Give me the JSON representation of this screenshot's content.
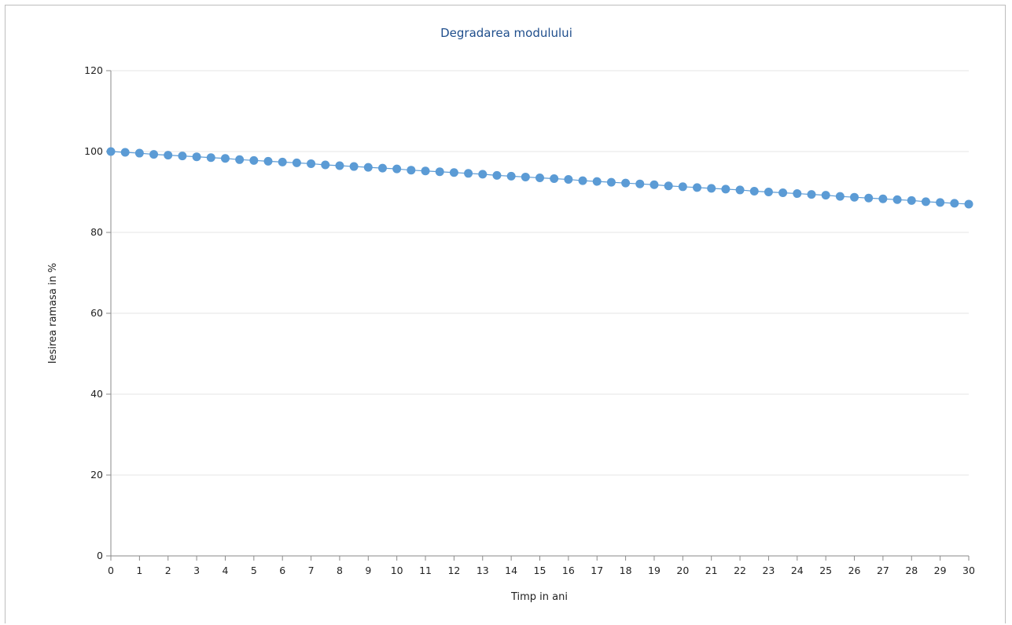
{
  "chart_data": {
    "type": "line",
    "title": "Degradarea modulului",
    "xlabel": "Timp in ani",
    "ylabel": "Iesirea ramasa in %",
    "xlim": [
      0,
      30
    ],
    "ylim": [
      0,
      120
    ],
    "x_ticks": [
      0,
      1,
      2,
      3,
      4,
      5,
      6,
      7,
      8,
      9,
      10,
      11,
      12,
      13,
      14,
      15,
      16,
      17,
      18,
      19,
      20,
      21,
      22,
      23,
      24,
      25,
      26,
      27,
      28,
      29,
      30
    ],
    "y_ticks": [
      0,
      20,
      40,
      60,
      80,
      100,
      120
    ],
    "grid": true,
    "legend": "none",
    "series": [
      {
        "color": "#5b9bd5",
        "x": [
          0,
          0.5,
          1,
          1.5,
          2,
          2.5,
          3,
          3.5,
          4,
          4.5,
          5,
          5.5,
          6,
          6.5,
          7,
          7.5,
          8,
          8.5,
          9,
          9.5,
          10,
          10.5,
          11,
          11.5,
          12,
          12.5,
          13,
          13.5,
          14,
          14.5,
          15,
          15.5,
          16,
          16.5,
          17,
          17.5,
          18,
          18.5,
          19,
          19.5,
          20,
          20.5,
          21,
          21.5,
          22,
          22.5,
          23,
          23.5,
          24,
          24.5,
          25,
          25.5,
          26,
          26.5,
          27,
          27.5,
          28,
          28.5,
          29,
          29.5,
          30
        ],
        "values": [
          100.0,
          99.8,
          99.6,
          99.3,
          99.1,
          98.9,
          98.7,
          98.5,
          98.3,
          98.0,
          97.8,
          97.6,
          97.4,
          97.2,
          97.0,
          96.7,
          96.5,
          96.3,
          96.1,
          95.9,
          95.7,
          95.4,
          95.2,
          95.0,
          94.8,
          94.6,
          94.4,
          94.1,
          93.9,
          93.7,
          93.5,
          93.3,
          93.1,
          92.8,
          92.6,
          92.4,
          92.2,
          92.0,
          91.8,
          91.5,
          91.3,
          91.1,
          90.9,
          90.7,
          90.5,
          90.2,
          90.0,
          89.8,
          89.6,
          89.4,
          89.2,
          88.9,
          88.7,
          88.5,
          88.3,
          88.1,
          87.9,
          87.6,
          87.4,
          87.2,
          87.0
        ]
      }
    ]
  }
}
